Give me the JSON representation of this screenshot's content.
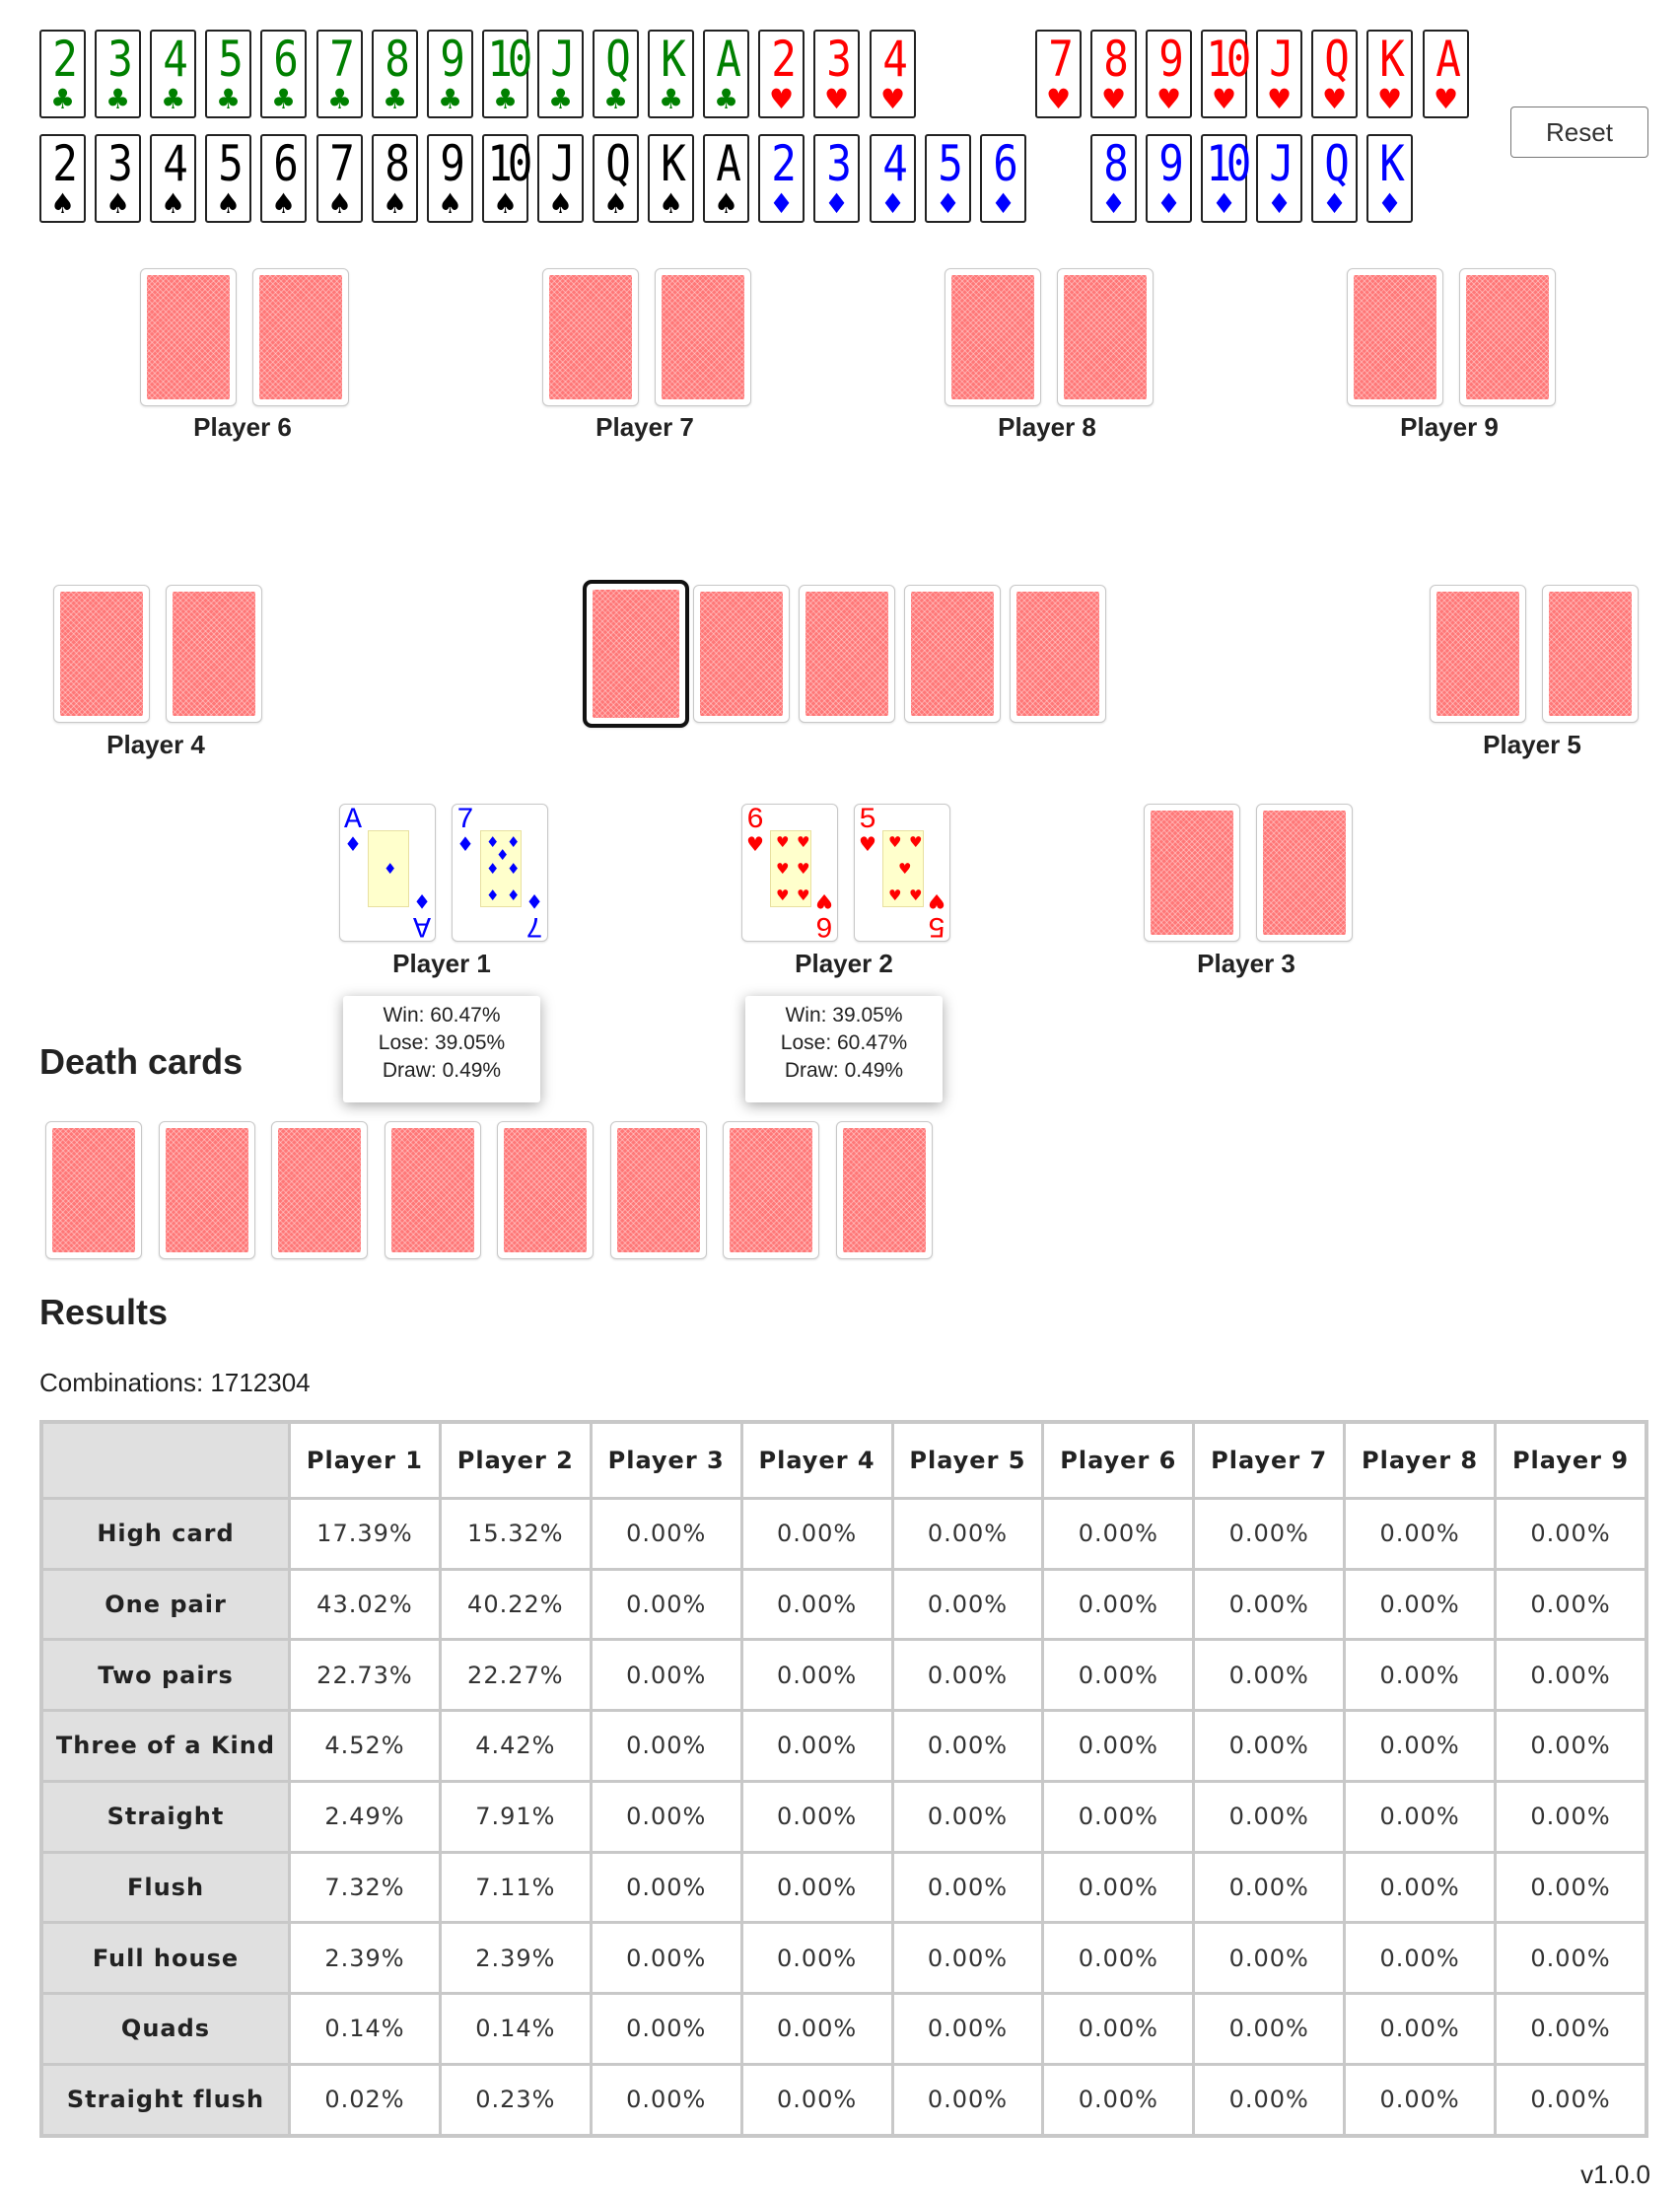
{
  "deck": {
    "rows": [
      [
        {
          "rank": "2",
          "suit": "♣",
          "color": "#008000"
        },
        {
          "rank": "3",
          "suit": "♣",
          "color": "#008000"
        },
        {
          "rank": "4",
          "suit": "♣",
          "color": "#008000"
        },
        {
          "rank": "5",
          "suit": "♣",
          "color": "#008000"
        },
        {
          "rank": "6",
          "suit": "♣",
          "color": "#008000"
        },
        {
          "rank": "7",
          "suit": "♣",
          "color": "#008000"
        },
        {
          "rank": "8",
          "suit": "♣",
          "color": "#008000"
        },
        {
          "rank": "9",
          "suit": "♣",
          "color": "#008000"
        },
        {
          "rank": "10",
          "suit": "♣",
          "color": "#008000"
        },
        {
          "rank": "J",
          "suit": "♣",
          "color": "#008000"
        },
        {
          "rank": "Q",
          "suit": "♣",
          "color": "#008000"
        },
        {
          "rank": "K",
          "suit": "♣",
          "color": "#008000"
        },
        {
          "rank": "A",
          "suit": "♣",
          "color": "#008000"
        },
        {
          "rank": "2",
          "suit": "♥",
          "color": "#ff0000"
        },
        {
          "rank": "3",
          "suit": "♥",
          "color": "#ff0000"
        },
        {
          "rank": "4",
          "suit": "♥",
          "color": "#ff0000"
        },
        null,
        null,
        {
          "rank": "7",
          "suit": "♥",
          "color": "#ff0000"
        },
        {
          "rank": "8",
          "suit": "♥",
          "color": "#ff0000"
        },
        {
          "rank": "9",
          "suit": "♥",
          "color": "#ff0000"
        },
        {
          "rank": "10",
          "suit": "♥",
          "color": "#ff0000"
        },
        {
          "rank": "J",
          "suit": "♥",
          "color": "#ff0000"
        },
        {
          "rank": "Q",
          "suit": "♥",
          "color": "#ff0000"
        },
        {
          "rank": "K",
          "suit": "♥",
          "color": "#ff0000"
        },
        {
          "rank": "A",
          "suit": "♥",
          "color": "#ff0000"
        }
      ],
      [
        {
          "rank": "2",
          "suit": "♠",
          "color": "#000000"
        },
        {
          "rank": "3",
          "suit": "♠",
          "color": "#000000"
        },
        {
          "rank": "4",
          "suit": "♠",
          "color": "#000000"
        },
        {
          "rank": "5",
          "suit": "♠",
          "color": "#000000"
        },
        {
          "rank": "6",
          "suit": "♠",
          "color": "#000000"
        },
        {
          "rank": "7",
          "suit": "♠",
          "color": "#000000"
        },
        {
          "rank": "8",
          "suit": "♠",
          "color": "#000000"
        },
        {
          "rank": "9",
          "suit": "♠",
          "color": "#000000"
        },
        {
          "rank": "10",
          "suit": "♠",
          "color": "#000000"
        },
        {
          "rank": "J",
          "suit": "♠",
          "color": "#000000"
        },
        {
          "rank": "Q",
          "suit": "♠",
          "color": "#000000"
        },
        {
          "rank": "K",
          "suit": "♠",
          "color": "#000000"
        },
        {
          "rank": "A",
          "suit": "♠",
          "color": "#000000"
        },
        {
          "rank": "2",
          "suit": "♦",
          "color": "#0000ff"
        },
        {
          "rank": "3",
          "suit": "♦",
          "color": "#0000ff"
        },
        {
          "rank": "4",
          "suit": "♦",
          "color": "#0000ff"
        },
        {
          "rank": "5",
          "suit": "♦",
          "color": "#0000ff"
        },
        {
          "rank": "6",
          "suit": "♦",
          "color": "#0000ff"
        },
        null,
        {
          "rank": "8",
          "suit": "♦",
          "color": "#0000ff"
        },
        {
          "rank": "9",
          "suit": "♦",
          "color": "#0000ff"
        },
        {
          "rank": "10",
          "suit": "♦",
          "color": "#0000ff"
        },
        {
          "rank": "J",
          "suit": "♦",
          "color": "#0000ff"
        },
        {
          "rank": "Q",
          "suit": "♦",
          "color": "#0000ff"
        },
        {
          "rank": "K",
          "suit": "♦",
          "color": "#0000ff"
        },
        null
      ]
    ]
  },
  "reset_label": "Reset",
  "players": [
    {
      "name": "Player 1",
      "cards": [
        {
          "rank": "A",
          "suit": "♦",
          "color": "#0000ff"
        },
        {
          "rank": "7",
          "suit": "♦",
          "color": "#0000ff"
        }
      ],
      "stats": {
        "win": "Win: 60.47%",
        "lose": "Lose: 39.05%",
        "draw": "Draw: 0.49%"
      }
    },
    {
      "name": "Player 2",
      "cards": [
        {
          "rank": "6",
          "suit": "♥",
          "color": "#ff0000"
        },
        {
          "rank": "5",
          "suit": "♥",
          "color": "#ff0000"
        }
      ],
      "stats": {
        "win": "Win: 39.05%",
        "lose": "Lose: 60.47%",
        "draw": "Draw: 0.49%"
      }
    },
    {
      "name": "Player 3",
      "cards": []
    },
    {
      "name": "Player 4",
      "cards": []
    },
    {
      "name": "Player 5",
      "cards": []
    },
    {
      "name": "Player 6",
      "cards": []
    },
    {
      "name": "Player 7",
      "cards": []
    },
    {
      "name": "Player 8",
      "cards": []
    },
    {
      "name": "Player 9",
      "cards": []
    }
  ],
  "board": {
    "card_count": 5,
    "selected_index": 0
  },
  "death_cards": {
    "title": "Death cards",
    "card_count": 8
  },
  "results": {
    "title": "Results",
    "combinations_text": "Combinations: 1712304",
    "columns": [
      "Player 1",
      "Player 2",
      "Player 3",
      "Player 4",
      "Player 5",
      "Player 6",
      "Player 7",
      "Player 8",
      "Player 9"
    ],
    "rows": [
      {
        "label": "High card",
        "values": [
          "17.39%",
          "15.32%",
          "0.00%",
          "0.00%",
          "0.00%",
          "0.00%",
          "0.00%",
          "0.00%",
          "0.00%"
        ]
      },
      {
        "label": "One pair",
        "values": [
          "43.02%",
          "40.22%",
          "0.00%",
          "0.00%",
          "0.00%",
          "0.00%",
          "0.00%",
          "0.00%",
          "0.00%"
        ]
      },
      {
        "label": "Two pairs",
        "values": [
          "22.73%",
          "22.27%",
          "0.00%",
          "0.00%",
          "0.00%",
          "0.00%",
          "0.00%",
          "0.00%",
          "0.00%"
        ]
      },
      {
        "label": "Three of a Kind",
        "values": [
          "4.52%",
          "4.42%",
          "0.00%",
          "0.00%",
          "0.00%",
          "0.00%",
          "0.00%",
          "0.00%",
          "0.00%"
        ]
      },
      {
        "label": "Straight",
        "values": [
          "2.49%",
          "7.91%",
          "0.00%",
          "0.00%",
          "0.00%",
          "0.00%",
          "0.00%",
          "0.00%",
          "0.00%"
        ]
      },
      {
        "label": "Flush",
        "values": [
          "7.32%",
          "7.11%",
          "0.00%",
          "0.00%",
          "0.00%",
          "0.00%",
          "0.00%",
          "0.00%",
          "0.00%"
        ]
      },
      {
        "label": "Full house",
        "values": [
          "2.39%",
          "2.39%",
          "0.00%",
          "0.00%",
          "0.00%",
          "0.00%",
          "0.00%",
          "0.00%",
          "0.00%"
        ]
      },
      {
        "label": "Quads",
        "values": [
          "0.14%",
          "0.14%",
          "0.00%",
          "0.00%",
          "0.00%",
          "0.00%",
          "0.00%",
          "0.00%",
          "0.00%"
        ]
      },
      {
        "label": "Straight flush",
        "values": [
          "0.02%",
          "0.23%",
          "0.00%",
          "0.00%",
          "0.00%",
          "0.00%",
          "0.00%",
          "0.00%",
          "0.00%"
        ]
      }
    ]
  },
  "version": "v1.0.0"
}
